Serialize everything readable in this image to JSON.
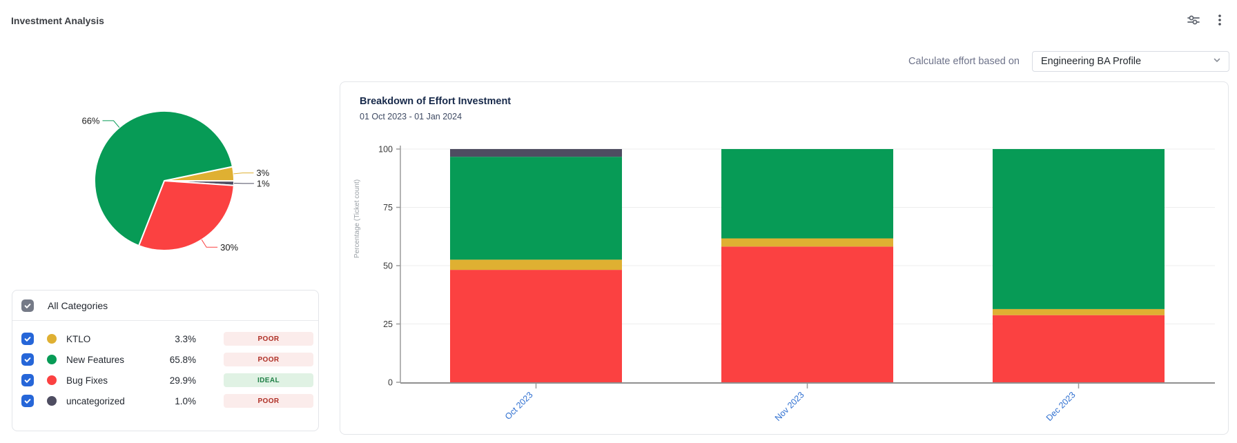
{
  "header": {
    "title": "Investment Analysis",
    "filter_icon": "horizontal-sliders",
    "menu_icon": "vertical-kebab"
  },
  "controls": {
    "label": "Calculate effort based on",
    "profile_dropdown": {
      "value": "Engineering BA Profile"
    }
  },
  "categories_panel": {
    "select_all_label": "All Categories",
    "select_all_checked": true,
    "rows": [
      {
        "name": "KTLO",
        "percent": "3.3%",
        "status": "POOR",
        "color": "#dfb032",
        "checked": true
      },
      {
        "name": "New Features",
        "percent": "65.8%",
        "status": "POOR",
        "color": "#079b56",
        "checked": true
      },
      {
        "name": "Bug Fixes",
        "percent": "29.9%",
        "status": "IDEAL",
        "color": "#fb4141",
        "checked": true
      },
      {
        "name": "uncategorized",
        "percent": "1.0%",
        "status": "POOR",
        "color": "#4e4d61",
        "checked": true
      }
    ]
  },
  "colors": {
    "ktlo": "#dfb032",
    "new_features": "#079b56",
    "bug_fixes": "#fb4141",
    "uncategorized": "#4e4d61",
    "axis_link_blue": "#2e6fd0",
    "checkbox_blue": "#2666d8",
    "checkbox_gray": "#757a87",
    "badge_poor_bg": "#fbeceb",
    "badge_poor_text": "#ae2e24",
    "badge_ideal_bg": "#e0f2e4",
    "badge_ideal_text": "#1e7e45"
  },
  "chart_data": [
    {
      "type": "pie",
      "slices": [
        {
          "label": "KTLO",
          "value": 3.3,
          "display": "3%",
          "color": "#dfb032"
        },
        {
          "label": "uncategorized",
          "value": 1.0,
          "display": "1%",
          "color": "#4e4d61"
        },
        {
          "label": "Bug Fixes",
          "value": 29.9,
          "display": "30%",
          "color": "#fb4141"
        },
        {
          "label": "New Features",
          "value": 65.8,
          "display": "66%",
          "color": "#079b56"
        }
      ],
      "start_angle_cw_from_top": 78.3,
      "labels_shown": [
        "66%",
        "3%",
        "1%",
        "30%"
      ]
    },
    {
      "type": "bar",
      "stacked": true,
      "title": "Breakdown of Effort Investment",
      "subtitle": "01 Oct 2023 - 01 Jan 2024",
      "categories": [
        "Oct 2023",
        "Nov 2023",
        "Dec 2023"
      ],
      "series": [
        {
          "name": "Bug Fixes",
          "color": "#fb4141",
          "values": [
            48.2,
            58.2,
            28.8
          ]
        },
        {
          "name": "KTLO",
          "color": "#dfb032",
          "values": [
            4.4,
            3.5,
            2.6
          ]
        },
        {
          "name": "New Features",
          "color": "#079b56",
          "values": [
            44.1,
            38.3,
            68.6
          ]
        },
        {
          "name": "uncategorized",
          "color": "#4e4d61",
          "values": [
            3.3,
            0,
            0
          ]
        }
      ],
      "ylabel": "Percentage (Ticket count)",
      "yticks": [
        0,
        25,
        50,
        75,
        100
      ],
      "ylim": [
        0,
        100
      ],
      "grid": true,
      "legend": "none"
    }
  ]
}
